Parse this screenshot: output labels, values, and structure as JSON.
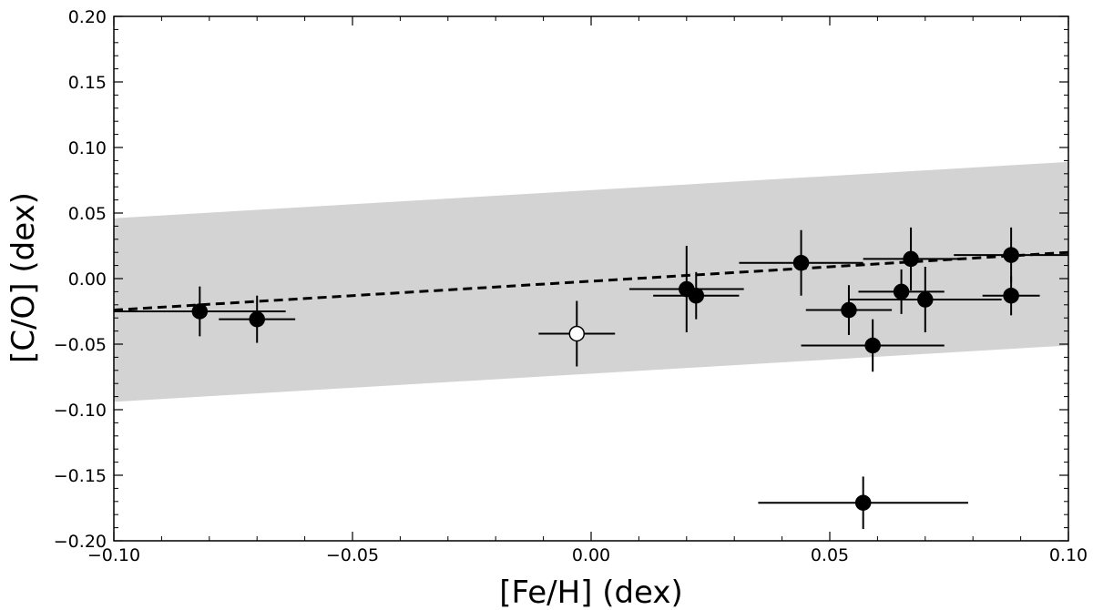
{
  "chart_data": {
    "type": "scatter",
    "title": "",
    "xlabel": "[Fe/H] (dex)",
    "ylabel": "[C/O] (dex)",
    "xlim": [
      -0.1,
      0.1
    ],
    "ylim": [
      -0.2,
      0.2
    ],
    "x_ticks": [
      -0.1,
      -0.05,
      0.0,
      0.05,
      0.1
    ],
    "x_tick_labels": [
      "−0.10",
      "−0.05",
      "0.00",
      "0.05",
      "0.10"
    ],
    "y_ticks": [
      -0.2,
      -0.15,
      -0.1,
      -0.05,
      0.0,
      0.05,
      0.1,
      0.15,
      0.2
    ],
    "y_tick_labels": [
      "−0.20",
      "−0.15",
      "−0.10",
      "−0.05",
      "0.00",
      "0.05",
      "0.10",
      "0.15",
      "0.20"
    ],
    "grid": false,
    "legend": "none",
    "band": {
      "color": "#d3d3d3",
      "lower": [
        [
          -0.1,
          -0.094
        ],
        [
          0.1,
          -0.051
        ]
      ],
      "upper": [
        [
          -0.1,
          0.046
        ],
        [
          0.1,
          0.089
        ]
      ]
    },
    "fit_line": {
      "style": "dashed",
      "color": "#000000",
      "points": [
        [
          -0.1,
          -0.024
        ],
        [
          0.1,
          0.02
        ]
      ]
    },
    "series": [
      {
        "marker": "filled-circle",
        "color": "#000000",
        "points": [
          {
            "x": -0.082,
            "y": -0.025,
            "xerr": 0.018,
            "yerr": 0.019
          },
          {
            "x": -0.07,
            "y": -0.031,
            "xerr": 0.008,
            "yerr": 0.018
          },
          {
            "x": 0.02,
            "y": -0.008,
            "xerr": 0.012,
            "yerr": 0.033
          },
          {
            "x": 0.022,
            "y": -0.013,
            "xerr": 0.009,
            "yerr": 0.018
          },
          {
            "x": 0.044,
            "y": 0.012,
            "xerr": 0.013,
            "yerr": 0.025
          },
          {
            "x": 0.054,
            "y": -0.024,
            "xerr": 0.009,
            "yerr": 0.019
          },
          {
            "x": 0.059,
            "y": -0.051,
            "xerr": 0.015,
            "yerr": 0.02
          },
          {
            "x": 0.065,
            "y": -0.01,
            "xerr": 0.009,
            "yerr": 0.017
          },
          {
            "x": 0.067,
            "y": 0.015,
            "xerr": 0.01,
            "yerr": 0.024
          },
          {
            "x": 0.07,
            "y": -0.016,
            "xerr": 0.016,
            "yerr": 0.025
          },
          {
            "x": 0.088,
            "y": 0.018,
            "xerr": 0.012,
            "yerr": 0.021
          },
          {
            "x": 0.088,
            "y": -0.013,
            "xerr": 0.006,
            "yerr": 0.015
          },
          {
            "x": 0.057,
            "y": -0.171,
            "xerr": 0.022,
            "yerr": 0.02
          }
        ]
      },
      {
        "marker": "open-circle",
        "color": "#000000",
        "points": [
          {
            "x": -0.003,
            "y": -0.042,
            "xerr": 0.008,
            "yerr": 0.025
          }
        ]
      }
    ]
  }
}
